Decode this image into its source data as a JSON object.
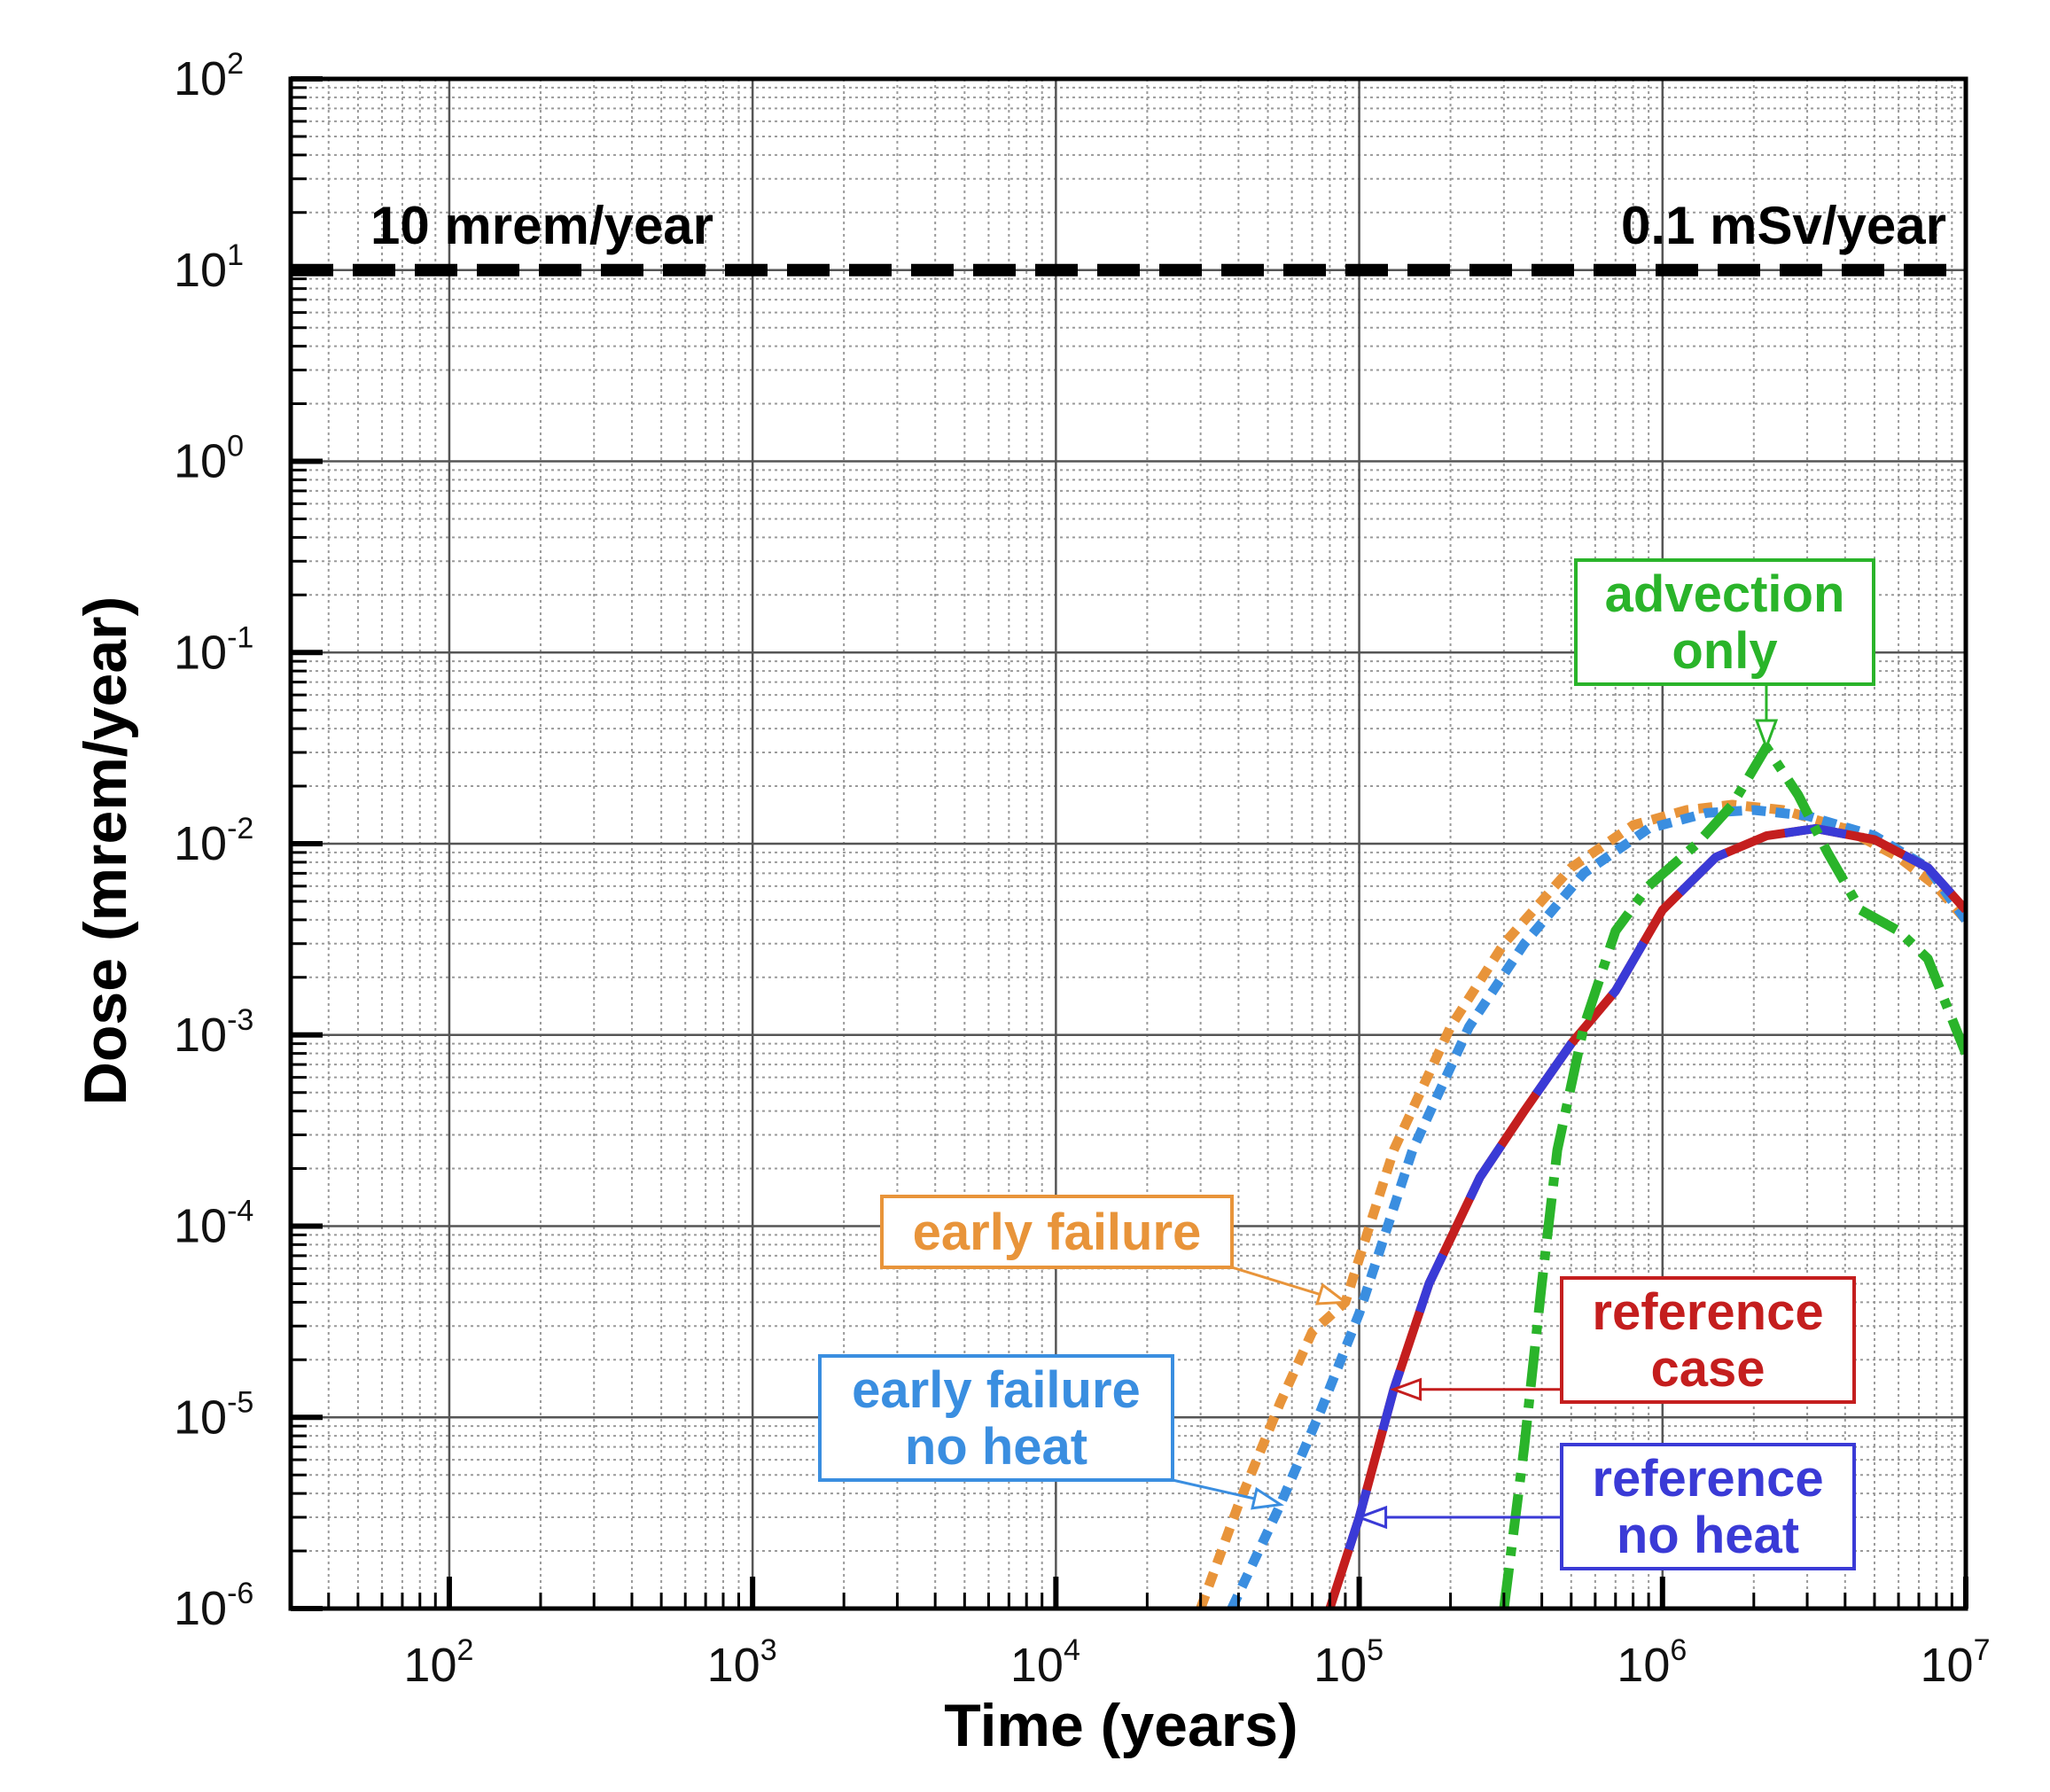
{
  "chart_data": {
    "type": "line",
    "xscale": "log",
    "yscale": "log",
    "xlabel": "Time (years)",
    "ylabel": "Dose (mrem/year)",
    "xlim": [
      30,
      10000000
    ],
    "ylim": [
      1e-06,
      100
    ],
    "grid": true,
    "x_ticks": [
      {
        "value": 100,
        "base": "10",
        "exp": "2"
      },
      {
        "value": 1000,
        "base": "10",
        "exp": "3"
      },
      {
        "value": 10000,
        "base": "10",
        "exp": "4"
      },
      {
        "value": 100000,
        "base": "10",
        "exp": "5"
      },
      {
        "value": 1000000,
        "base": "10",
        "exp": "6"
      },
      {
        "value": 10000000,
        "base": "10",
        "exp": "7"
      }
    ],
    "y_ticks": [
      {
        "value": 100,
        "base": "10",
        "exp": "2"
      },
      {
        "value": 10,
        "base": "10",
        "exp": "1"
      },
      {
        "value": 1,
        "base": "10",
        "exp": "0"
      },
      {
        "value": 0.1,
        "base": "10",
        "exp": "-1"
      },
      {
        "value": 0.01,
        "base": "10",
        "exp": "-2"
      },
      {
        "value": 0.001,
        "base": "10",
        "exp": "-3"
      },
      {
        "value": 0.0001,
        "base": "10",
        "exp": "-4"
      },
      {
        "value": 1e-05,
        "base": "10",
        "exp": "-5"
      },
      {
        "value": 1e-06,
        "base": "10",
        "exp": "-6"
      }
    ],
    "reference_line": {
      "y": 10,
      "label_left": "10 mrem/year",
      "label_right": "0.1 mSv/year",
      "color": "#000000"
    },
    "series": [
      {
        "name": "early failure",
        "label_lines": [
          "early failure"
        ],
        "color": "#e8943a",
        "style": "dotted",
        "arrow_at": 90000,
        "points": [
          [
            30000,
            1e-06
          ],
          [
            40000,
            3.5e-06
          ],
          [
            55000,
            1.2e-05
          ],
          [
            70000,
            2.8e-05
          ],
          [
            90000,
            4e-05
          ],
          [
            130000,
            0.00025
          ],
          [
            200000,
            0.0011
          ],
          [
            300000,
            0.003
          ],
          [
            500000,
            0.0075
          ],
          [
            800000,
            0.0125
          ],
          [
            1200000,
            0.015
          ],
          [
            1700000,
            0.016
          ],
          [
            2500000,
            0.015
          ],
          [
            4000000,
            0.012
          ],
          [
            6000000,
            0.0085
          ],
          [
            8000000,
            0.006
          ],
          [
            10000000,
            0.004
          ]
        ]
      },
      {
        "name": "early failure no heat",
        "label_lines": [
          "early failure",
          "no heat"
        ],
        "color": "#3a8ee0",
        "style": "dotted",
        "arrow_at": 55000,
        "points": [
          [
            38000,
            1e-06
          ],
          [
            55000,
            3.5e-06
          ],
          [
            75000,
            1.1e-05
          ],
          [
            100000,
            3.5e-05
          ],
          [
            150000,
            0.00025
          ],
          [
            230000,
            0.0011
          ],
          [
            350000,
            0.003
          ],
          [
            550000,
            0.007
          ],
          [
            900000,
            0.012
          ],
          [
            1400000,
            0.0145
          ],
          [
            2000000,
            0.015
          ],
          [
            3000000,
            0.014
          ],
          [
            5000000,
            0.011
          ],
          [
            7500000,
            0.0075
          ],
          [
            10000000,
            0.004
          ]
        ]
      },
      {
        "name": "reference case",
        "label_lines": [
          "reference",
          "case"
        ],
        "color": "#c41e1e",
        "style": "solid",
        "arrow_at": 130000,
        "points": [
          [
            80000,
            1e-06
          ],
          [
            100000,
            3e-06
          ],
          [
            130000,
            1.4e-05
          ],
          [
            170000,
            5e-05
          ],
          [
            250000,
            0.00018
          ],
          [
            350000,
            0.0004
          ],
          [
            500000,
            0.0009
          ],
          [
            700000,
            0.0017
          ],
          [
            1000000,
            0.0045
          ],
          [
            1500000,
            0.0085
          ],
          [
            2200000,
            0.011
          ],
          [
            3200000,
            0.012
          ],
          [
            5000000,
            0.0105
          ],
          [
            7500000,
            0.0075
          ],
          [
            10000000,
            0.0045
          ]
        ]
      },
      {
        "name": "reference no heat",
        "label_lines": [
          "reference",
          "no heat"
        ],
        "color": "#3a3ad6",
        "style": "solid",
        "arrow_at": 100000,
        "points": [
          [
            80000,
            1e-06
          ],
          [
            100000,
            3e-06
          ],
          [
            130000,
            1.4e-05
          ],
          [
            170000,
            5e-05
          ],
          [
            250000,
            0.00018
          ],
          [
            350000,
            0.0004
          ],
          [
            500000,
            0.0009
          ],
          [
            700000,
            0.0017
          ],
          [
            1000000,
            0.0045
          ],
          [
            1500000,
            0.0085
          ],
          [
            2200000,
            0.011
          ],
          [
            3200000,
            0.012
          ],
          [
            5000000,
            0.0105
          ],
          [
            7500000,
            0.0075
          ],
          [
            10000000,
            0.0045
          ]
        ]
      },
      {
        "name": "advection only",
        "label_lines": [
          "advection",
          "only"
        ],
        "color": "#2ab42a",
        "style": "dashdot",
        "arrow_at": 2200000,
        "points": [
          [
            300000,
            1e-06
          ],
          [
            350000,
            7e-06
          ],
          [
            400000,
            5e-05
          ],
          [
            450000,
            0.00025
          ],
          [
            550000,
            0.0011
          ],
          [
            700000,
            0.0035
          ],
          [
            900000,
            0.006
          ],
          [
            1300000,
            0.01
          ],
          [
            1700000,
            0.016
          ],
          [
            2200000,
            0.032
          ],
          [
            2800000,
            0.018
          ],
          [
            3500000,
            0.009
          ],
          [
            4500000,
            0.0045
          ],
          [
            6000000,
            0.0035
          ],
          [
            7500000,
            0.0025
          ],
          [
            10000000,
            0.0008
          ]
        ]
      }
    ]
  }
}
